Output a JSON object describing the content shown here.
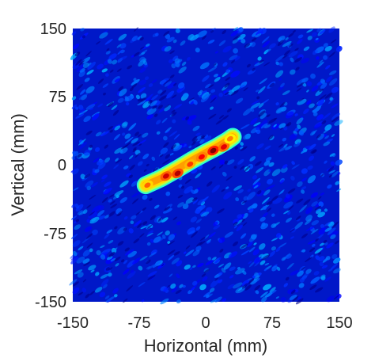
{
  "chart_data": {
    "type": "heatmap",
    "title": "",
    "xlabel": "Horizontal (mm)",
    "ylabel": "Vertical (mm)",
    "xlim": [
      -150,
      150
    ],
    "ylim": [
      -150,
      150
    ],
    "x_ticks": [
      -150,
      -75,
      0,
      75,
      150
    ],
    "y_ticks": [
      -150,
      -75,
      0,
      75,
      150
    ],
    "x_tick_labels": [
      "-150",
      "-75",
      "0",
      "75",
      "150"
    ],
    "y_tick_labels": [
      "-150",
      "-75",
      "0",
      "75",
      "150"
    ],
    "grid": false,
    "legend": "none",
    "colormap": "jet",
    "background_value": 0.12,
    "colors": {
      "low": "#0000b0",
      "mid": "#00ffff",
      "high_mid": "#ffff00",
      "high": "#ff0000"
    },
    "hotspot_path": [
      [
        -68,
        -22
      ],
      [
        -50,
        -14
      ],
      [
        -32,
        -4
      ],
      [
        -15,
        6
      ],
      [
        0,
        14
      ],
      [
        12,
        20
      ],
      [
        24,
        27
      ],
      [
        30,
        31
      ]
    ],
    "hotspot_width_mm": 13,
    "peaks": [
      {
        "x": -66,
        "y": -22,
        "intensity": 0.78
      },
      {
        "x": -45,
        "y": -12,
        "intensity": 0.92
      },
      {
        "x": -32,
        "y": -9,
        "intensity": 0.95
      },
      {
        "x": -18,
        "y": 1,
        "intensity": 0.82
      },
      {
        "x": -5,
        "y": 9,
        "intensity": 0.88
      },
      {
        "x": 8,
        "y": 16,
        "intensity": 1.0
      },
      {
        "x": 20,
        "y": 20,
        "intensity": 0.9
      },
      {
        "x": 27,
        "y": 29,
        "intensity": 0.75
      }
    ]
  }
}
